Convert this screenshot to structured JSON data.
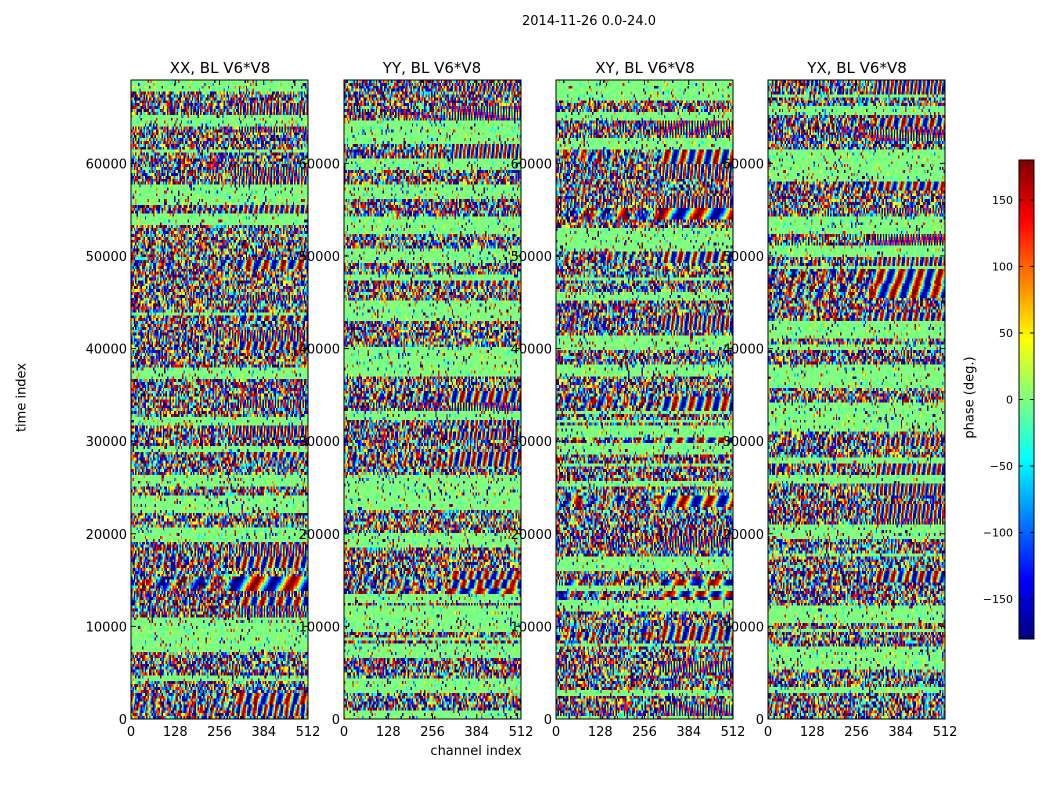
{
  "figure": {
    "suptitle": "2014-11-26 0.0-24.0"
  },
  "chart_data": {
    "type": "heatmap",
    "title": "2014-11-26 0.0-24.0",
    "xlabel": "channel index",
    "ylabel": "time index",
    "xlim": [
      0,
      512
    ],
    "ylim": [
      0,
      69000
    ],
    "x_ticks": [
      "0",
      "128",
      "256",
      "384",
      "512"
    ],
    "y_ticks": [
      "0",
      "10000",
      "20000",
      "30000",
      "40000",
      "50000",
      "60000"
    ],
    "panels": [
      {
        "title": "XX, BL V6*V8"
      },
      {
        "title": "YY, BL V6*V8"
      },
      {
        "title": "XY, BL V6*V8"
      },
      {
        "title": "YX, BL V6*V8"
      }
    ],
    "colorbar": {
      "label": "phase (deg.)",
      "range": [
        -180,
        180
      ],
      "ticks": [
        "150",
        "100",
        "50",
        "0",
        "−50",
        "−100",
        "−150"
      ],
      "colormap": "jet"
    }
  },
  "colors": {
    "jet": [
      "#00007f",
      "#0000ff",
      "#007fff",
      "#00ffff",
      "#7fff7f",
      "#ffff00",
      "#ff7f00",
      "#ff0000",
      "#7f0000"
    ]
  }
}
